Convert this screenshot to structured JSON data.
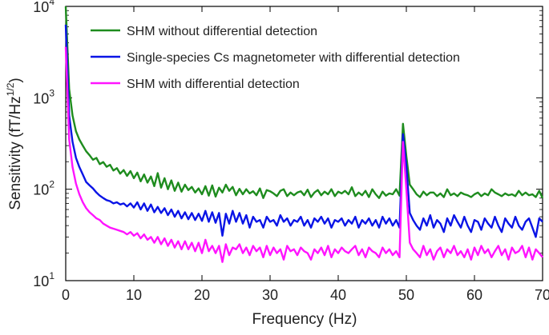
{
  "chart_data": {
    "type": "line",
    "title": "",
    "xlabel": "Frequency (Hz)",
    "ylabel": {
      "base": "Sensitivity (fT/Hz",
      "sup": "1/2",
      "close": ")"
    },
    "xlim": [
      0,
      70
    ],
    "ylim": [
      10,
      10000
    ],
    "yscale": "log",
    "xticks": [
      0,
      10,
      20,
      30,
      40,
      50,
      60,
      70
    ],
    "xtick_labels": [
      "0",
      "10",
      "20",
      "30",
      "40",
      "50",
      "60",
      "70"
    ],
    "yticks": [
      {
        "value": 10,
        "base": "10",
        "exp": "1"
      },
      {
        "value": 100,
        "base": "10",
        "exp": "2"
      },
      {
        "value": 1000,
        "base": "10",
        "exp": "3"
      },
      {
        "value": 10000,
        "base": "10",
        "exp": "4"
      }
    ],
    "grid": false,
    "legend_position": "top-left",
    "x": [
      0,
      0.5,
      1,
      1.5,
      2,
      2.5,
      3,
      3.5,
      4,
      4.5,
      5,
      5.5,
      6,
      6.5,
      7,
      7.5,
      8,
      8.5,
      9,
      9.5,
      10,
      10.5,
      11,
      11.5,
      12,
      12.5,
      13,
      13.5,
      14,
      14.5,
      15,
      15.5,
      16,
      16.5,
      17,
      17.5,
      18,
      18.5,
      19,
      19.5,
      20,
      20.5,
      21,
      21.5,
      22,
      22.5,
      23,
      23.5,
      24,
      24.5,
      25,
      25.5,
      26,
      26.5,
      27,
      27.5,
      28,
      28.5,
      29,
      29.5,
      30,
      30.5,
      31,
      31.5,
      32,
      32.5,
      33,
      33.5,
      34,
      34.5,
      35,
      35.5,
      36,
      36.5,
      37,
      37.5,
      38,
      38.5,
      39,
      39.5,
      40,
      40.5,
      41,
      41.5,
      42,
      42.5,
      43,
      43.5,
      44,
      44.5,
      45,
      45.5,
      46,
      46.5,
      47,
      47.5,
      48,
      48.5,
      49,
      49.5,
      50,
      50.5,
      51,
      51.5,
      52,
      52.5,
      53,
      53.5,
      54,
      54.5,
      55,
      55.5,
      56,
      56.5,
      57,
      57.5,
      58,
      58.5,
      59,
      59.5,
      60,
      60.5,
      61,
      61.5,
      62,
      62.5,
      63,
      63.5,
      64,
      64.5,
      65,
      65.5,
      66,
      66.5,
      67,
      67.5,
      68,
      68.5,
      69,
      69.5,
      70
    ],
    "series": [
      {
        "name": "SHM without differential detection",
        "color": "#1e8c1e",
        "values": [
          12500,
          1250,
          640,
          430,
          350,
          300,
          260,
          235,
          210,
          220,
          188,
          198,
          176,
          185,
          160,
          170,
          148,
          162,
          140,
          158,
          132,
          152,
          122,
          145,
          118,
          138,
          108,
          150,
          104,
          132,
          100,
          125,
          96,
          118,
          94,
          112,
          98,
          106,
          92,
          102,
          88,
          108,
          85,
          110,
          83,
          104,
          92,
          112,
          96,
          106,
          86,
          101,
          88,
          100,
          90,
          95,
          86,
          102,
          80,
          98,
          95,
          90,
          84,
          96,
          100,
          84,
          92,
          86,
          92,
          95,
          86,
          99,
          82,
          92,
          98,
          86,
          94,
          88,
          100,
          84,
          94,
          90,
          96,
          88,
          105,
          84,
          92,
          86,
          96,
          82,
          100,
          88,
          80,
          94,
          85,
          90,
          88,
          100,
          85,
          520,
          230,
          112,
          100,
          88,
          82,
          94,
          86,
          92,
          92,
          84,
          90,
          82,
          100,
          86,
          90,
          84,
          92,
          88,
          86,
          82,
          88,
          92,
          84,
          90,
          86,
          100,
          92,
          88,
          84,
          90,
          86,
          88,
          84,
          96,
          86,
          92,
          86,
          88,
          82,
          96,
          80
        ]
      },
      {
        "name": "Single-species Cs magnetometer with differential detection",
        "color": "#0a14e6",
        "values": [
          6300,
          640,
          330,
          220,
          175,
          145,
          120,
          110,
          102,
          92,
          85,
          80,
          76,
          74,
          70,
          72,
          68,
          70,
          65,
          70,
          63,
          72,
          60,
          70,
          58,
          68,
          56,
          64,
          55,
          62,
          52,
          60,
          50,
          58,
          48,
          56,
          47,
          55,
          46,
          54,
          45,
          58,
          44,
          56,
          43,
          55,
          31,
          54,
          42,
          58,
          44,
          55,
          42,
          52,
          38,
          50,
          44,
          46,
          38,
          50,
          44,
          46,
          40,
          52,
          44,
          48,
          40,
          46,
          44,
          50,
          40,
          46,
          38,
          48,
          44,
          50,
          42,
          48,
          38,
          46,
          44,
          48,
          40,
          46,
          42,
          50,
          38,
          46,
          42,
          48,
          40,
          46,
          38,
          50,
          42,
          48,
          40,
          46,
          38,
          400,
          180,
          55,
          46,
          40,
          36,
          48,
          40,
          52,
          38,
          46,
          42,
          34,
          48,
          40,
          52,
          44,
          38,
          50,
          40,
          34,
          46,
          44,
          36,
          48,
          42,
          38,
          50,
          40,
          34,
          48,
          42,
          38,
          50,
          40,
          36,
          44,
          48,
          38,
          30,
          48,
          44
        ]
      },
      {
        "name": "SHM with differential detection",
        "color": "#ff14ff",
        "values": [
          3600,
          350,
          175,
          115,
          88,
          72,
          62,
          56,
          52,
          48,
          46,
          42,
          40,
          38,
          37,
          36,
          35,
          34,
          32,
          34,
          31,
          33,
          29,
          32,
          28,
          30,
          26,
          30,
          25,
          29,
          24,
          28,
          23,
          27,
          22,
          27,
          22,
          26,
          21,
          26,
          20,
          28,
          21,
          24,
          20,
          24,
          16,
          25,
          19,
          23,
          22,
          25,
          20,
          23,
          19,
          24,
          21,
          23,
          18,
          24,
          19,
          23,
          20,
          22,
          17,
          24,
          21,
          22,
          19,
          23,
          21,
          20,
          17,
          22,
          20,
          23,
          19,
          24,
          18,
          22,
          20,
          23,
          21,
          20,
          22,
          24,
          19,
          22,
          18,
          23,
          21,
          20,
          18,
          23,
          20,
          22,
          19,
          21,
          18,
          330,
          100,
          26,
          22,
          20,
          18,
          24,
          19,
          22,
          17,
          21,
          23,
          18,
          22,
          20,
          24,
          19,
          21,
          18,
          22,
          17,
          23,
          19,
          24,
          20,
          22,
          18,
          21,
          24,
          19,
          22,
          17,
          23,
          20,
          21,
          24,
          18,
          23,
          17,
          22,
          20,
          18
        ]
      }
    ]
  }
}
